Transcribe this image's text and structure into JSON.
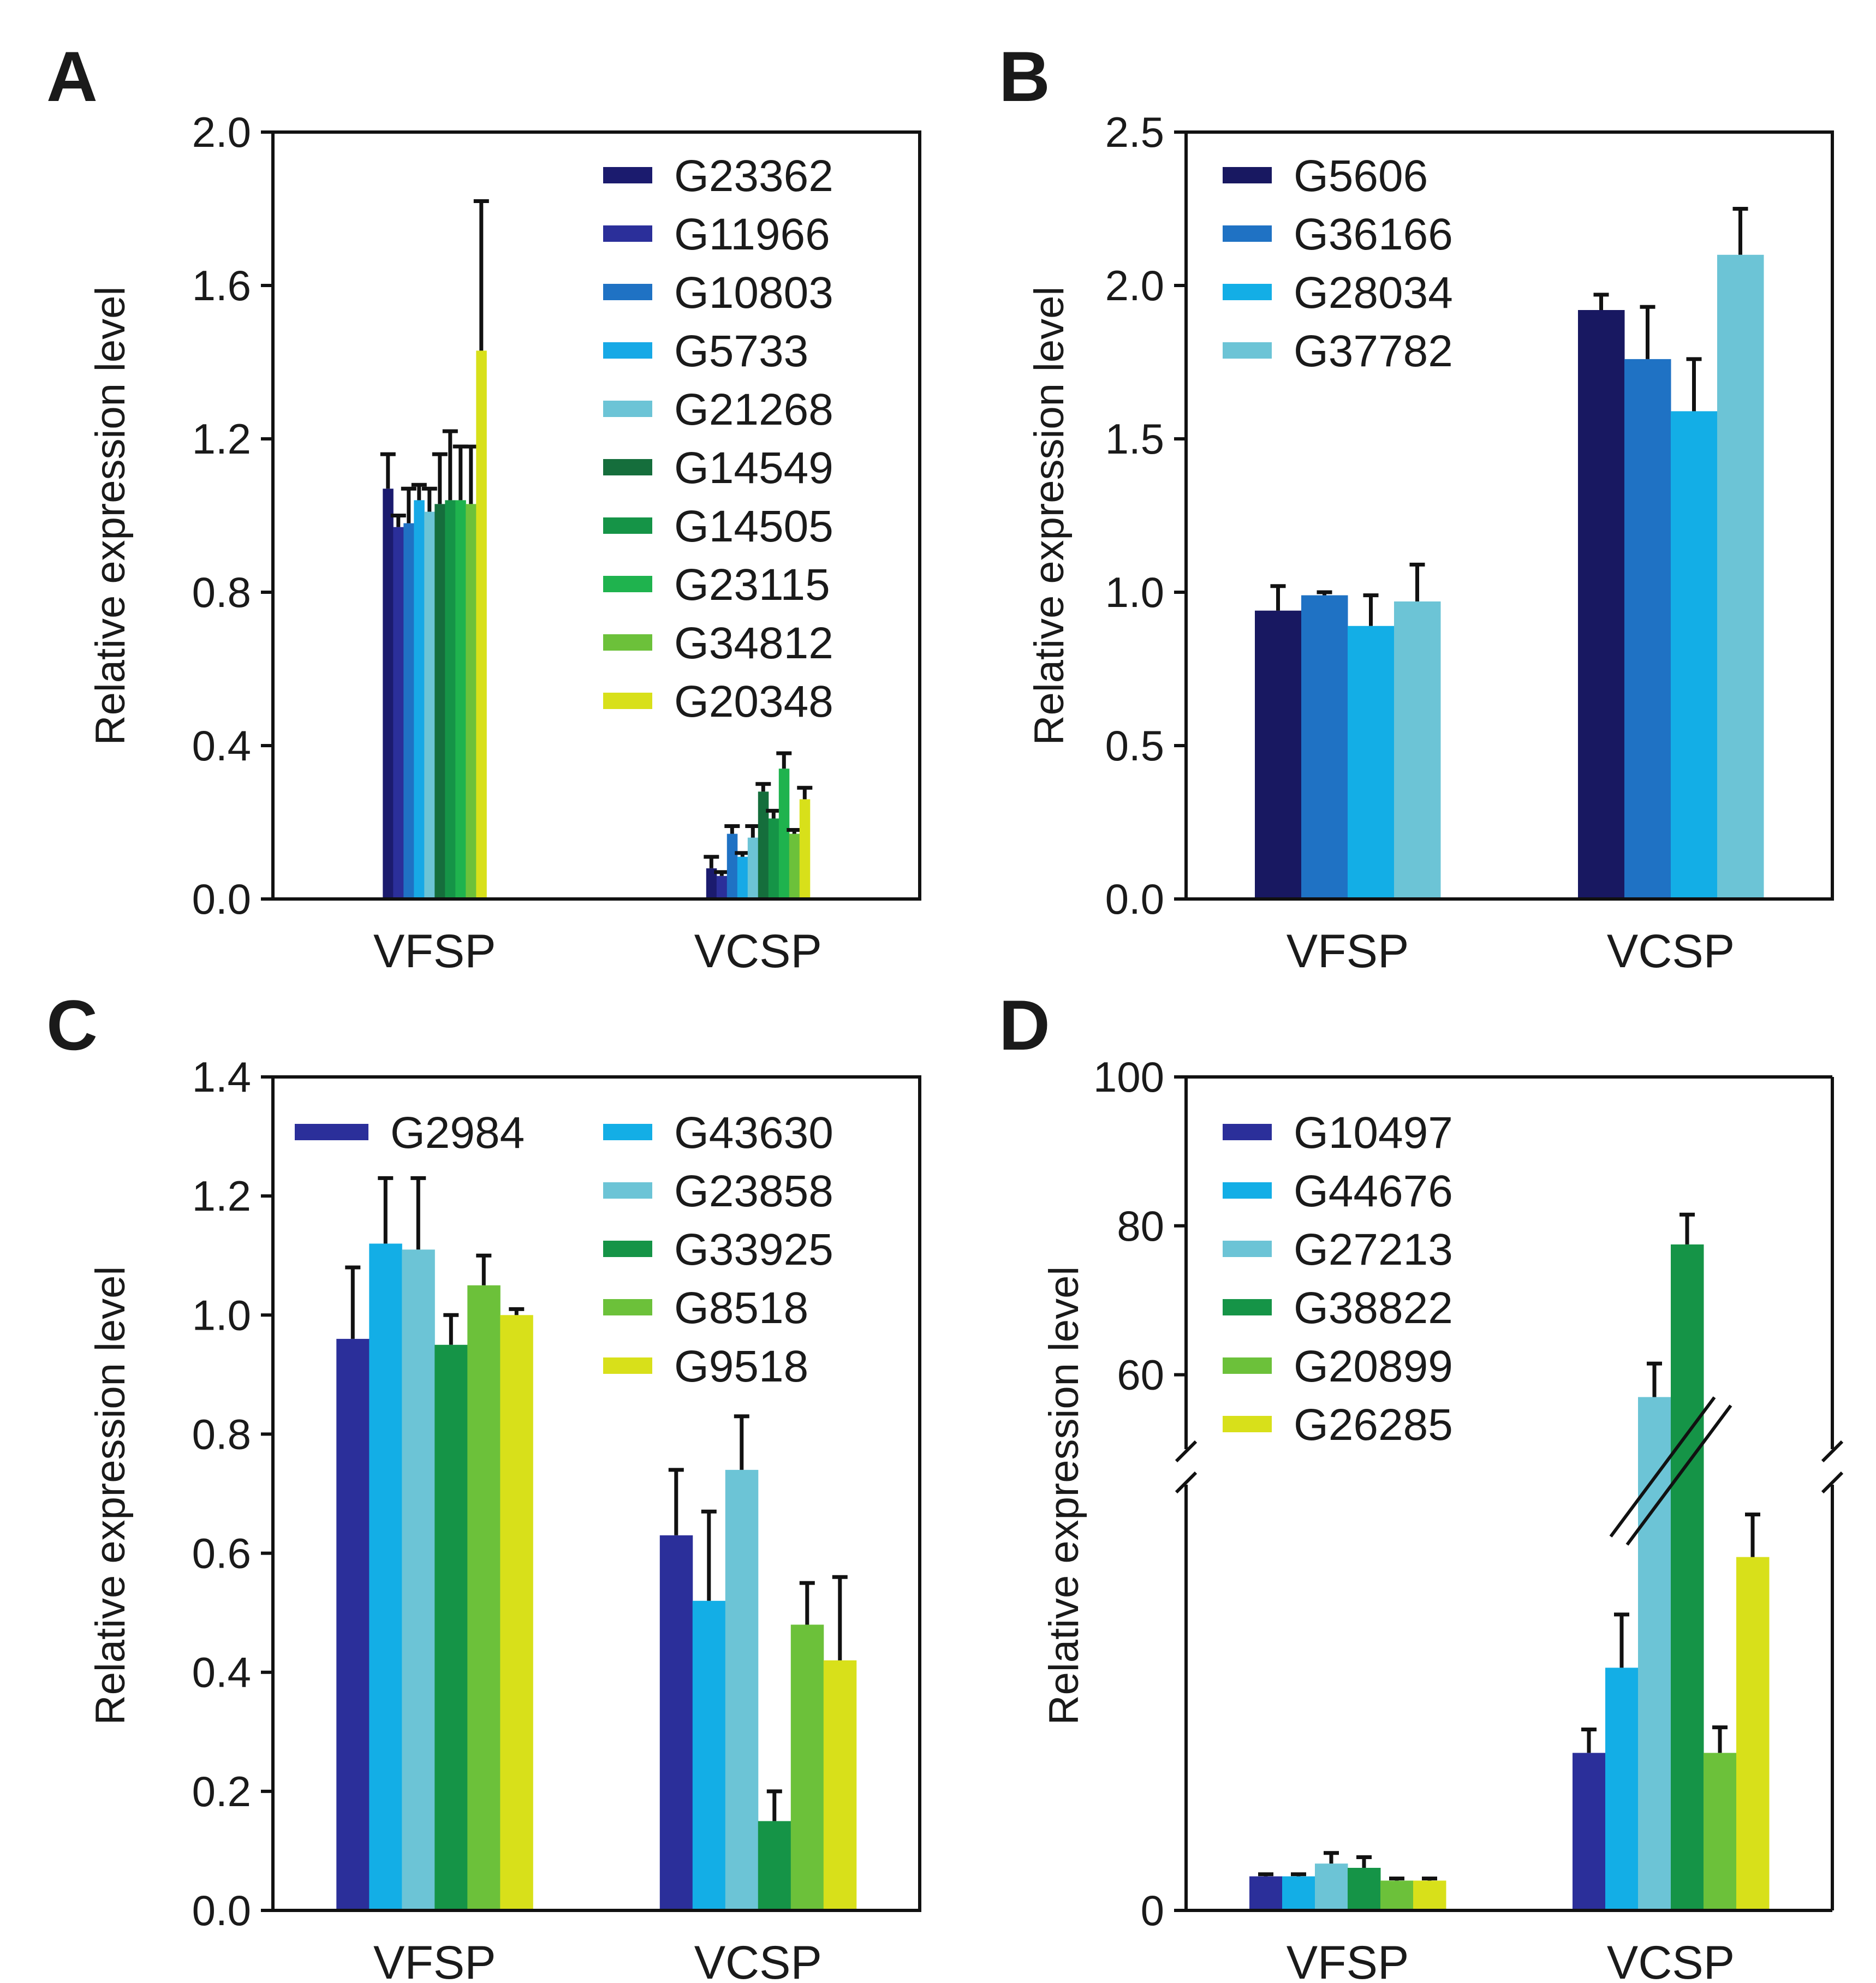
{
  "chart_data": [
    {
      "panel": "A",
      "type": "bar",
      "ylabel": "Relative expression level",
      "ylim": [
        0,
        2.0
      ],
      "yticks": [
        "0.0",
        "0.4",
        "0.8",
        "1.2",
        "1.6",
        "2.0"
      ],
      "categories": [
        "VFSP",
        "VCSP"
      ],
      "legend_position": "top-right",
      "series": [
        {
          "name": "G23362",
          "color": "#1b1b6e",
          "values": [
            1.07,
            0.08
          ],
          "errors": [
            0.09,
            0.03
          ]
        },
        {
          "name": "G11966",
          "color": "#2b2f9a",
          "values": [
            0.97,
            0.06
          ],
          "errors": [
            0.03,
            0.01
          ]
        },
        {
          "name": "G10803",
          "color": "#1f72c4",
          "values": [
            0.98,
            0.17
          ],
          "errors": [
            0.09,
            0.02
          ]
        },
        {
          "name": "G5733",
          "color": "#17a9e6",
          "values": [
            1.04,
            0.11
          ],
          "errors": [
            0.04,
            0.01
          ]
        },
        {
          "name": "G21268",
          "color": "#6cc4d6",
          "values": [
            1.01,
            0.16
          ],
          "errors": [
            0.06,
            0.03
          ]
        },
        {
          "name": "G14549",
          "color": "#156e3c",
          "values": [
            1.03,
            0.28
          ],
          "errors": [
            0.13,
            0.02
          ]
        },
        {
          "name": "G14505",
          "color": "#159447",
          "values": [
            1.04,
            0.21
          ],
          "errors": [
            0.18,
            0.02
          ]
        },
        {
          "name": "G23115",
          "color": "#1fb34e",
          "values": [
            1.04,
            0.34
          ],
          "errors": [
            0.14,
            0.04
          ]
        },
        {
          "name": "G34812",
          "color": "#6cc13a",
          "values": [
            1.03,
            0.17
          ],
          "errors": [
            0.15,
            0.01
          ]
        },
        {
          "name": "G20348",
          "color": "#d8e01a",
          "values": [
            1.43,
            0.26
          ],
          "errors": [
            0.39,
            0.03
          ]
        }
      ]
    },
    {
      "panel": "B",
      "type": "bar",
      "ylabel": "Relative expression level",
      "ylim": [
        0,
        2.5
      ],
      "yticks": [
        "0.0",
        "0.5",
        "1.0",
        "1.5",
        "2.0",
        "2.5"
      ],
      "categories": [
        "VFSP",
        "VCSP"
      ],
      "legend_position": "top-left",
      "series": [
        {
          "name": "G5606",
          "color": "#181861",
          "values": [
            0.94,
            1.92
          ],
          "errors": [
            0.08,
            0.05
          ]
        },
        {
          "name": "G36166",
          "color": "#1f72c4",
          "values": [
            0.99,
            1.76
          ],
          "errors": [
            0.01,
            0.17
          ]
        },
        {
          "name": "G28034",
          "color": "#13aee6",
          "values": [
            0.89,
            1.59
          ],
          "errors": [
            0.1,
            0.17
          ]
        },
        {
          "name": "G37782",
          "color": "#6cc4d6",
          "values": [
            0.97,
            2.1
          ],
          "errors": [
            0.12,
            0.15
          ]
        }
      ]
    },
    {
      "panel": "C",
      "type": "bar",
      "ylabel": "Relative expression level",
      "ylim": [
        0,
        1.4
      ],
      "yticks": [
        "0.0",
        "0.2",
        "0.4",
        "0.6",
        "0.8",
        "1.0",
        "1.2",
        "1.4"
      ],
      "categories": [
        "VFSP",
        "VCSP"
      ],
      "legend_position": "top",
      "series": [
        {
          "name": "G2984",
          "color": "#2b2f9a",
          "values": [
            0.96,
            0.63
          ],
          "errors": [
            0.12,
            0.11
          ]
        },
        {
          "name": "G43630",
          "color": "#13aee6",
          "values": [
            1.12,
            0.52
          ],
          "errors": [
            0.11,
            0.15
          ]
        },
        {
          "name": "G23858",
          "color": "#6cc4d6",
          "values": [
            1.11,
            0.74
          ],
          "errors": [
            0.12,
            0.09
          ]
        },
        {
          "name": "G33925",
          "color": "#159447",
          "values": [
            0.95,
            0.15
          ],
          "errors": [
            0.05,
            0.05
          ]
        },
        {
          "name": "G8518",
          "color": "#6cc13a",
          "values": [
            1.05,
            0.48
          ],
          "errors": [
            0.05,
            0.07
          ]
        },
        {
          "name": "G9518",
          "color": "#d8e01a",
          "values": [
            1.0,
            0.42
          ],
          "errors": [
            0.01,
            0.14
          ]
        }
      ]
    },
    {
      "panel": "D",
      "type": "bar",
      "ylabel": "Relative expression level",
      "y_axis_break": true,
      "yticks": [
        "0",
        "60",
        "80",
        "100"
      ],
      "categories": [
        "VFSP",
        "VCSP"
      ],
      "legend_position": "top-left",
      "series": [
        {
          "name": "G10497",
          "color": "#2b2f9a",
          "values": [
            0.8,
            3.7
          ],
          "errors": [
            0.05,
            0.55
          ]
        },
        {
          "name": "G44676",
          "color": "#13aee6",
          "values": [
            0.8,
            5.7
          ],
          "errors": [
            0.05,
            1.25
          ]
        },
        {
          "name": "G27213",
          "color": "#6cc4d6",
          "values": [
            1.1,
            57
          ],
          "errors": [
            0.25,
            4.5
          ]
        },
        {
          "name": "G38822",
          "color": "#159447",
          "values": [
            1.0,
            77.5
          ],
          "errors": [
            0.25,
            4.0
          ]
        },
        {
          "name": "G20899",
          "color": "#6cc13a",
          "values": [
            0.7,
            3.7
          ],
          "errors": [
            0.05,
            0.6
          ]
        },
        {
          "name": "G26285",
          "color": "#d8e01a",
          "values": [
            0.7,
            8.3
          ],
          "errors": [
            0.05,
            1.0
          ]
        }
      ]
    }
  ]
}
